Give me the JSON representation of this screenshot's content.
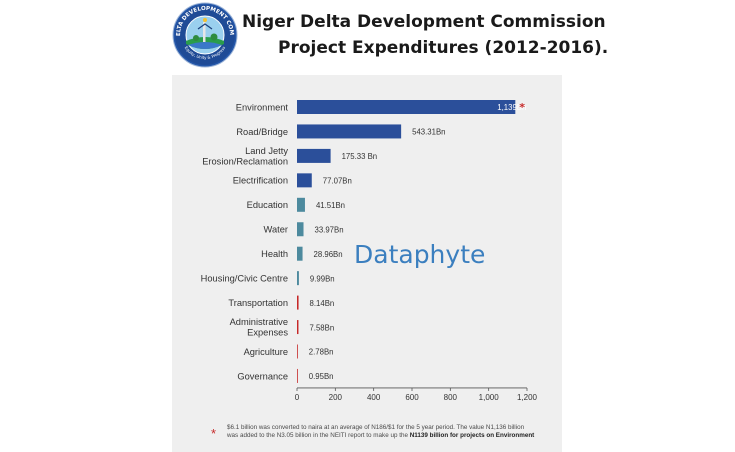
{
  "header": {
    "title_line1": "Niger Delta Development Commission",
    "title_line2": "Project Expenditures (2012-2016)."
  },
  "logo": {
    "ring_text": "Niger Delta Development Commission",
    "motto": "Equity, Unity & Progress"
  },
  "watermark": "Dataphyte",
  "footnote": {
    "marker": "*",
    "line1": "$6.1 billion was converted to naira at an average of N186/$1 for the 5 year period. The value N1,136 billion",
    "line2_pre": "was added to the N3.05 billion in the NEITI report to make up the ",
    "line2_bold": "N1139 billion for projects on Environment"
  },
  "colors": {
    "dark_blue": "#2b4f9a",
    "teal": "#4d8a9e",
    "red": "#c62828",
    "watermark_blue": "#3b7fbf",
    "panel_bg": "#efefef"
  },
  "chart_data": {
    "type": "bar",
    "orientation": "horizontal",
    "title": "Niger Delta Development Commission Project Expenditures (2012-2016).",
    "xlabel": "",
    "ylabel": "",
    "xlim": [
      0,
      1200
    ],
    "xticks": [
      0,
      200,
      400,
      600,
      800,
      1000,
      1200
    ],
    "xtick_labels": [
      "0",
      "200",
      "400",
      "600",
      "800",
      "1,000",
      "1,200"
    ],
    "grid": false,
    "legend": "none",
    "categories": [
      "Environment",
      "Road/Bridge",
      "Land Jetty Erosion/Reclamation",
      "Electrification",
      "Education",
      "Water",
      "Health",
      "Housing/Civic Centre",
      "Transportation",
      "Administrative Expenses",
      "Agriculture",
      "Governance"
    ],
    "category_lines": [
      [
        "Environment"
      ],
      [
        "Road/Bridge"
      ],
      [
        "Land Jetty",
        "Erosion/Reclamation"
      ],
      [
        "Electrification"
      ],
      [
        "Education"
      ],
      [
        "Water"
      ],
      [
        "Health"
      ],
      [
        "Housing/Civic Centre"
      ],
      [
        "Transportation"
      ],
      [
        "Administrative",
        "Expenses"
      ],
      [
        "Agriculture"
      ],
      [
        "Governance"
      ]
    ],
    "values": [
      1139,
      543.31,
      175.33,
      77.07,
      41.51,
      33.97,
      28.96,
      9.99,
      8.14,
      7.58,
      2.78,
      0.95
    ],
    "value_labels": [
      "1,139Bn",
      "543.31Bn",
      "175.33 Bn",
      "77.07Bn",
      "41.51Bn",
      "33.97Bn",
      "28.96Bn",
      "9.99Bn",
      "8.14Bn",
      "7.58Bn",
      "2.78Bn",
      "0.95Bn"
    ],
    "bar_colors": [
      "#2b4f9a",
      "#2b4f9a",
      "#2b4f9a",
      "#2b4f9a",
      "#4d8a9e",
      "#4d8a9e",
      "#4d8a9e",
      "#4d8a9e",
      "#c62828",
      "#c62828",
      "#c62828",
      "#c62828"
    ],
    "annotations": [
      {
        "category": "Environment",
        "marker": "*"
      }
    ]
  }
}
